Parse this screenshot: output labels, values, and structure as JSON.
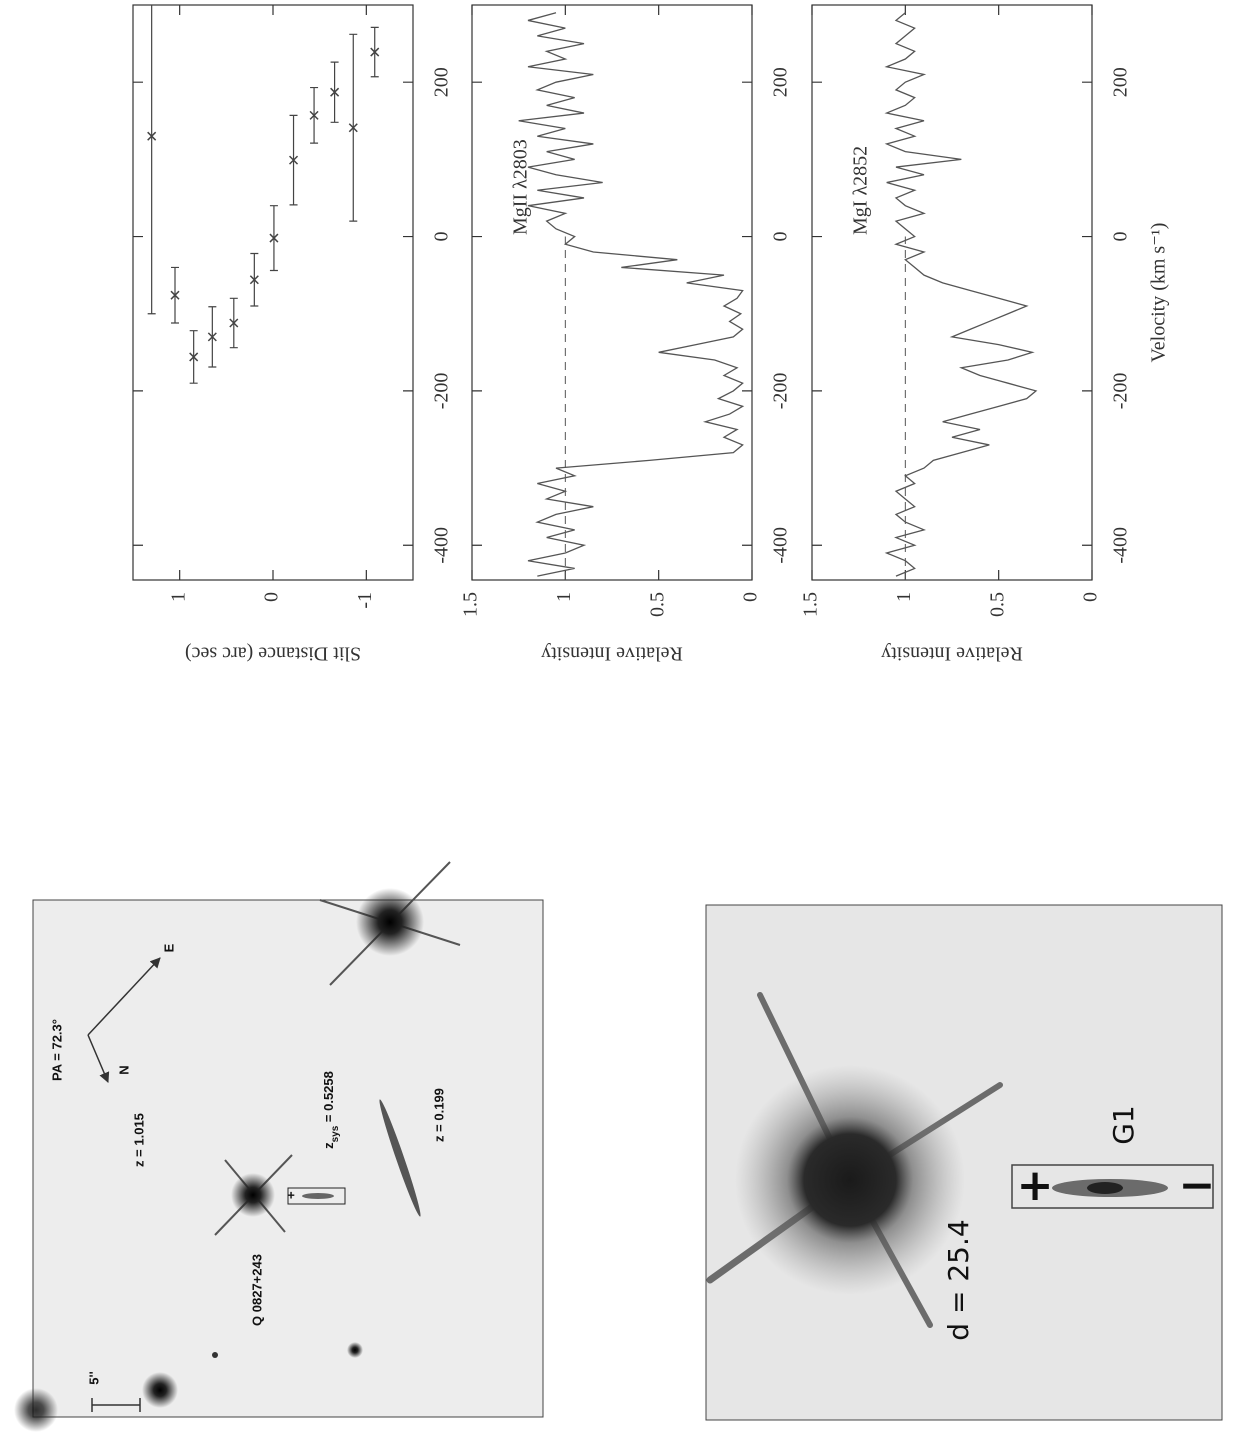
{
  "chart_data": [
    {
      "type": "errorbar",
      "y_label": "Slit Distance (arc sec)",
      "x": [
        130,
        -76,
        -156,
        -130,
        -112,
        -56,
        -2,
        99,
        157,
        187,
        141,
        239
      ],
      "xerr": [
        230,
        36,
        34,
        39,
        32,
        34,
        42,
        58,
        36,
        39,
        121,
        32
      ],
      "values": [
        1.3,
        1.05,
        0.85,
        0.65,
        0.42,
        0.2,
        -0.01,
        -0.22,
        -0.44,
        -0.66,
        -0.86,
        -1.09
      ],
      "color": "#444444",
      "xlim": [
        -445,
        300
      ],
      "ylim": [
        -1.5,
        1.5
      ],
      "xticks": [
        -400,
        -200,
        0,
        200
      ],
      "yticks": [
        -1,
        0,
        1
      ]
    },
    {
      "type": "line",
      "y_label": "Relative Intensity",
      "annotation": "MgII λ2803",
      "x": [
        -440,
        -430,
        -420,
        -410,
        -400,
        -390,
        -380,
        -370,
        -360,
        -350,
        -340,
        -330,
        -320,
        -310,
        -300,
        -290,
        -280,
        -270,
        -260,
        -250,
        -240,
        -230,
        -220,
        -210,
        -200,
        -190,
        -180,
        -170,
        -160,
        -150,
        -140,
        -130,
        -120,
        -110,
        -100,
        -90,
        -80,
        -70,
        -60,
        -50,
        -40,
        -30,
        -20,
        -10,
        0,
        10,
        20,
        30,
        40,
        50,
        60,
        70,
        80,
        90,
        100,
        110,
        120,
        130,
        140,
        150,
        160,
        170,
        180,
        190,
        200,
        210,
        220,
        230,
        240,
        250,
        260,
        270,
        280,
        290
      ],
      "values": [
        1.15,
        0.95,
        1.2,
        1.0,
        0.9,
        1.1,
        0.95,
        1.15,
        1.05,
        0.85,
        1.1,
        1.0,
        1.15,
        0.95,
        1.05,
        0.55,
        0.1,
        0.05,
        0.15,
        0.08,
        0.25,
        0.12,
        0.05,
        0.18,
        0.1,
        0.05,
        0.15,
        0.08,
        0.2,
        0.5,
        0.3,
        0.1,
        0.05,
        0.12,
        0.06,
        0.15,
        0.08,
        0.05,
        0.35,
        0.15,
        0.7,
        0.4,
        0.85,
        1.0,
        0.95,
        1.05,
        1.1,
        1.0,
        1.2,
        0.9,
        1.15,
        0.8,
        1.05,
        1.2,
        0.95,
        1.1,
        0.85,
        1.15,
        1.0,
        1.25,
        0.9,
        1.1,
        0.95,
        1.15,
        1.05,
        0.85,
        1.2,
        1.0,
        1.1,
        0.9,
        1.15,
        1.0,
        1.2,
        1.05
      ],
      "color": "#555555",
      "reference_line": 1,
      "xlim": [
        -445,
        300
      ],
      "ylim": [
        0,
        1.5
      ],
      "xticks": [
        -400,
        -200,
        0,
        200
      ],
      "yticks": [
        0,
        0.5,
        1,
        1.5
      ]
    },
    {
      "type": "line",
      "y_label": "Relative Intensity",
      "x_label": "Velocity (km s⁻¹)",
      "annotation": "MgI λ2852",
      "x": [
        -440,
        -430,
        -420,
        -410,
        -400,
        -390,
        -380,
        -370,
        -360,
        -350,
        -340,
        -330,
        -320,
        -310,
        -300,
        -290,
        -280,
        -270,
        -260,
        -250,
        -240,
        -230,
        -220,
        -210,
        -200,
        -190,
        -180,
        -170,
        -160,
        -150,
        -140,
        -130,
        -120,
        -110,
        -100,
        -90,
        -80,
        -70,
        -60,
        -50,
        -40,
        -30,
        -20,
        -10,
        0,
        10,
        20,
        30,
        40,
        50,
        60,
        70,
        80,
        90,
        100,
        110,
        120,
        130,
        140,
        150,
        160,
        170,
        180,
        190,
        200,
        210,
        220,
        230,
        240,
        250,
        260,
        270,
        280,
        290
      ],
      "values": [
        1.05,
        0.95,
        1.0,
        1.1,
        0.95,
        1.05,
        0.9,
        1.0,
        1.05,
        0.95,
        1.0,
        1.05,
        0.95,
        1.0,
        0.9,
        0.85,
        0.7,
        0.55,
        0.75,
        0.6,
        0.8,
        0.65,
        0.5,
        0.35,
        0.3,
        0.45,
        0.6,
        0.7,
        0.45,
        0.32,
        0.5,
        0.75,
        0.65,
        0.55,
        0.45,
        0.35,
        0.5,
        0.65,
        0.8,
        0.9,
        0.95,
        1.0,
        0.9,
        1.05,
        0.95,
        1.0,
        1.05,
        0.9,
        1.0,
        1.05,
        0.95,
        1.1,
        0.9,
        1.05,
        0.7,
        1.0,
        1.1,
        0.95,
        1.05,
        0.9,
        1.1,
        1.0,
        0.95,
        1.05,
        1.0,
        0.9,
        1.1,
        1.0,
        0.95,
        1.05,
        1.0,
        0.95,
        1.05,
        1.0
      ],
      "color": "#555555",
      "reference_line": 1,
      "xlim": [
        -445,
        300
      ],
      "ylim": [
        0,
        1.5
      ],
      "xticks": [
        -400,
        -200,
        0,
        200
      ],
      "yticks": [
        0,
        0.5,
        1,
        1.5
      ]
    }
  ],
  "images": [
    {
      "pa": "PA = 72.3°",
      "east": "E",
      "north": "N",
      "z_a": "z = 1.015",
      "quasar": "Q 0827+243",
      "zsys_z": "z",
      "zsys_sub": "sys",
      "zsys_value": " = 0.5258",
      "z_b": "z = 0.199",
      "scale": "5''",
      "slit_plus": "+"
    },
    {
      "distance": "d = 25.4",
      "galaxy": "G1",
      "slit_plus": "+",
      "slit_minus": "−"
    }
  ]
}
